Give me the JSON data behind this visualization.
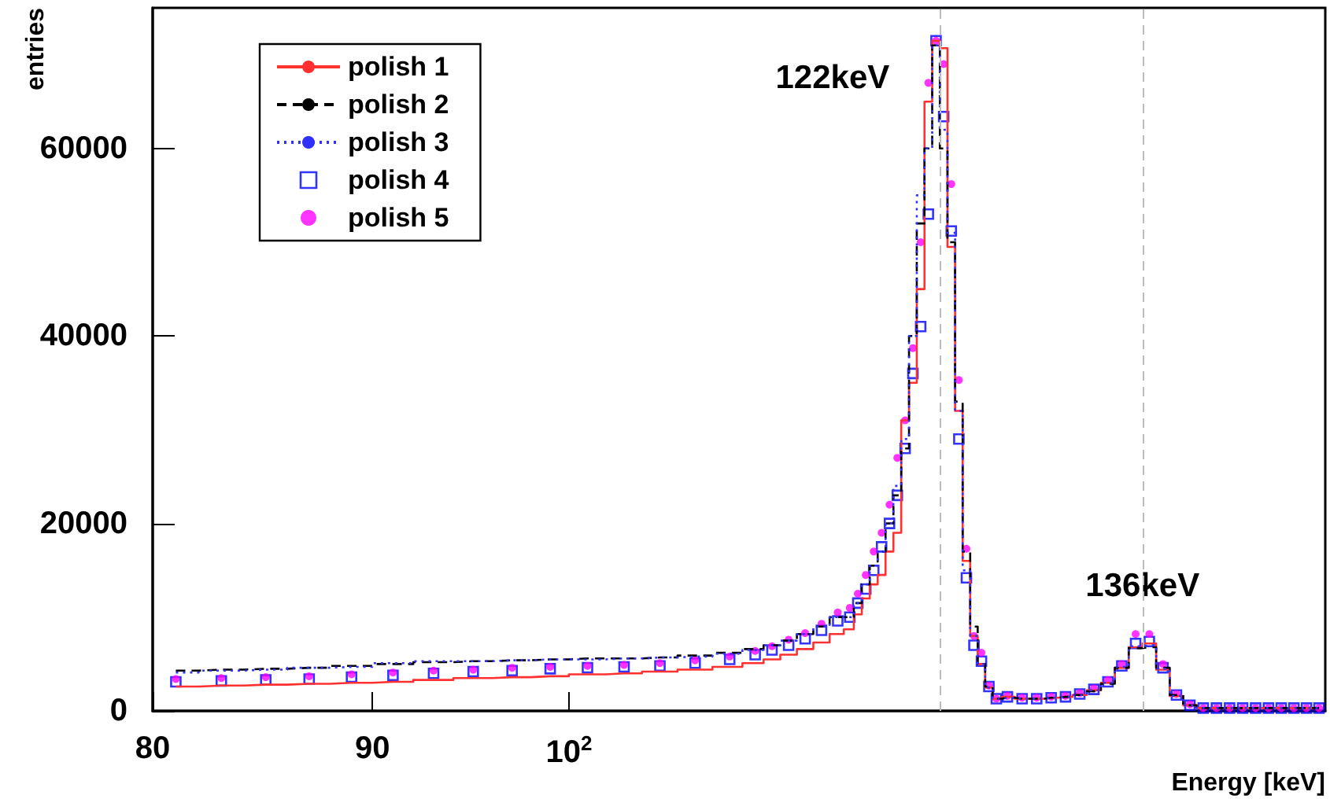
{
  "chart_data": {
    "type": "step",
    "xlabel": "Energy [keV]",
    "ylabel": "entries",
    "log": "x",
    "xlim": [
      80,
      150
    ],
    "ylim": [
      0,
      75000
    ],
    "xticks": [
      80,
      90,
      {
        "value": 100,
        "label": "10$^{2}$"
      }
    ],
    "yticks": [
      0,
      20000,
      40000,
      60000
    ],
    "legend": "top left",
    "x": [
      81,
      83,
      85,
      87,
      89,
      91,
      93,
      95,
      97,
      99,
      101,
      103,
      105,
      107,
      109,
      110.5,
      111.5,
      112.5,
      113.5,
      114.5,
      115.5,
      116.25,
      116.75,
      117.25,
      117.75,
      118.25,
      118.75,
      119.25,
      119.75,
      120.25,
      120.75,
      121.25,
      121.75,
      122.25,
      122.75,
      123.25,
      123.75,
      124.25,
      124.75,
      125.25,
      125.75,
      126.5,
      127.5,
      128.5,
      129.5,
      130.5,
      131.5,
      132.5,
      133.5,
      134.5,
      135.5,
      136.5,
      137.5,
      138.5,
      139.5,
      140.5,
      141.5,
      142.5,
      143.5,
      144.5,
      145.5,
      146.5,
      147.5,
      148.5,
      149.5
    ],
    "series": [
      {
        "name": "polish 1",
        "color": "#ff3030",
        "line_style": "solid",
        "values": [
          2600,
          2700,
          2800,
          2900,
          3000,
          3100,
          3300,
          3500,
          3600,
          3700,
          3900,
          4000,
          4200,
          4400,
          4700,
          5100,
          5500,
          6000,
          6600,
          7300,
          8200,
          8700,
          10300,
          12000,
          13500,
          14500,
          17000,
          19000,
          31000,
          35000,
          45000,
          65000,
          71500,
          70700,
          49500,
          32000,
          16000,
          8000,
          5000,
          2500,
          1300,
          1500,
          1300,
          1300,
          1400,
          1500,
          1700,
          2200,
          3000,
          4600,
          6800,
          7200,
          4400,
          1600,
          600,
          300,
          300,
          300,
          300,
          300,
          300,
          300,
          300,
          300,
          300
        ]
      },
      {
        "name": "polish 2",
        "color": "#000000",
        "line_style": "dashed",
        "values": [
          4300,
          4400,
          4500,
          4600,
          4800,
          5000,
          5200,
          5300,
          5400,
          5500,
          5600,
          5600,
          5700,
          5900,
          6200,
          6600,
          7000,
          7500,
          8200,
          9000,
          10000,
          10000,
          11500,
          13500,
          15500,
          17000,
          20000,
          23000,
          28000,
          40000,
          52000,
          60000,
          71000,
          60000,
          50000,
          33000,
          17000,
          9000,
          5000,
          2600,
          1300,
          1400,
          1300,
          1300,
          1400,
          1500,
          1700,
          2100,
          2900,
          4600,
          6700,
          6800,
          4600,
          1700,
          600,
          300,
          300,
          300,
          300,
          300,
          300,
          300,
          300,
          300,
          300
        ]
      },
      {
        "name": "polish 3",
        "color": "#3030ff",
        "line_style": "dotted",
        "values": [
          4100,
          4300,
          4400,
          4600,
          4700,
          5100,
          5300,
          5300,
          5400,
          5500,
          5500,
          5600,
          5700,
          5800,
          6100,
          6500,
          7000,
          7500,
          8200,
          9000,
          10000,
          10000,
          11500,
          13500,
          15500,
          17000,
          20000,
          24000,
          29000,
          40000,
          55000,
          60000,
          71000,
          62000,
          51000,
          32000,
          15000,
          8000,
          5000,
          2500,
          1300,
          1400,
          1300,
          1300,
          1400,
          1500,
          1700,
          2200,
          3000,
          4700,
          6900,
          7000,
          4500,
          1600,
          600,
          300,
          300,
          300,
          300,
          300,
          300,
          300,
          300,
          300,
          300
        ]
      },
      {
        "name": "polish 4",
        "color": "#0000ff",
        "type": "scatter",
        "marker": "square",
        "values": [
          3100,
          3200,
          3300,
          3400,
          3600,
          3800,
          4000,
          4200,
          4300,
          4500,
          4600,
          4700,
          4800,
          5100,
          5500,
          6000,
          6500,
          7000,
          7700,
          8600,
          9600,
          10000,
          11500,
          13000,
          15000,
          17500,
          20000,
          23000,
          28000,
          36000,
          41000,
          53000,
          71500,
          63400,
          51200,
          29000,
          14200,
          7000,
          5300,
          2600,
          1300,
          1500,
          1300,
          1300,
          1400,
          1500,
          1800,
          2300,
          3100,
          4800,
          7200,
          7400,
          4600,
          1700,
          600,
          300,
          300,
          300,
          300,
          300,
          300,
          300,
          300,
          300,
          300
        ]
      },
      {
        "name": "polish 5",
        "color": "#ff00ff",
        "type": "scatter",
        "marker": "circle",
        "values": [
          3400,
          3500,
          3600,
          3700,
          3900,
          4100,
          4300,
          4400,
          4600,
          4700,
          4800,
          4900,
          5100,
          5400,
          5800,
          6400,
          6900,
          7600,
          8300,
          9300,
          10500,
          11000,
          12500,
          14500,
          17000,
          19000,
          22000,
          27000,
          31000,
          38700,
          50000,
          67000,
          71500,
          69000,
          56200,
          35300,
          17300,
          8000,
          6200,
          2700,
          1300,
          1600,
          1400,
          1400,
          1500,
          1600,
          1900,
          2400,
          3300,
          5000,
          8200,
          8200,
          5000,
          1800,
          700,
          300,
          300,
          300,
          300,
          300,
          300,
          300,
          300,
          300,
          300
        ]
      }
    ],
    "ref_lines": [
      {
        "axis": "x",
        "value": 122,
        "color": "#bbbbbb",
        "line_style": "dashed"
      },
      {
        "axis": "x",
        "value": 136,
        "color": "#bbbbbb",
        "line_style": "dashed"
      }
    ],
    "annotations": [
      {
        "text": "122keV",
        "x": 122,
        "y": 67500
      },
      {
        "text": "136keV",
        "x": 136,
        "y": 13300
      }
    ]
  }
}
